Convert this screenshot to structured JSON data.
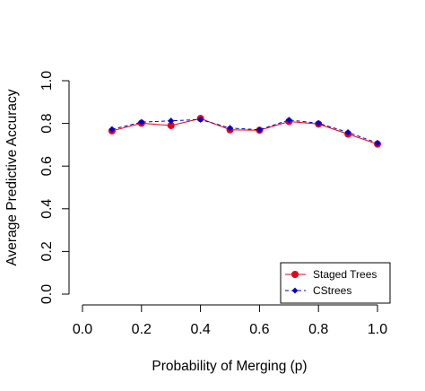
{
  "chart_data": {
    "type": "line",
    "title": "",
    "xlabel": "Probability of Merging (p)",
    "ylabel": "Average Predictive Accuracy",
    "xlim": [
      0.0,
      1.0
    ],
    "ylim": [
      0.0,
      1.0
    ],
    "x_ticks": [
      "0.0",
      "0.2",
      "0.4",
      "0.6",
      "0.8",
      "1.0"
    ],
    "y_ticks": [
      "0.0",
      "0.2",
      "0.4",
      "0.6",
      "0.8",
      "1.0"
    ],
    "grid": false,
    "legend_position": "bottom-right",
    "x": [
      0.1,
      0.2,
      0.3,
      0.4,
      0.5,
      0.6,
      0.7,
      0.8,
      0.9,
      1.0
    ],
    "series": [
      {
        "name": "Staged Trees",
        "color": "#e8001a",
        "line_style": "solid",
        "marker": "circle",
        "values": [
          0.765,
          0.801,
          0.79,
          0.823,
          0.77,
          0.768,
          0.809,
          0.797,
          0.75,
          0.703
        ]
      },
      {
        "name": "CStrees",
        "color": "#0000cc",
        "line_style": "dashed",
        "marker": "diamond",
        "values": [
          0.772,
          0.806,
          0.812,
          0.818,
          0.778,
          0.77,
          0.816,
          0.801,
          0.758,
          0.708
        ]
      }
    ]
  }
}
